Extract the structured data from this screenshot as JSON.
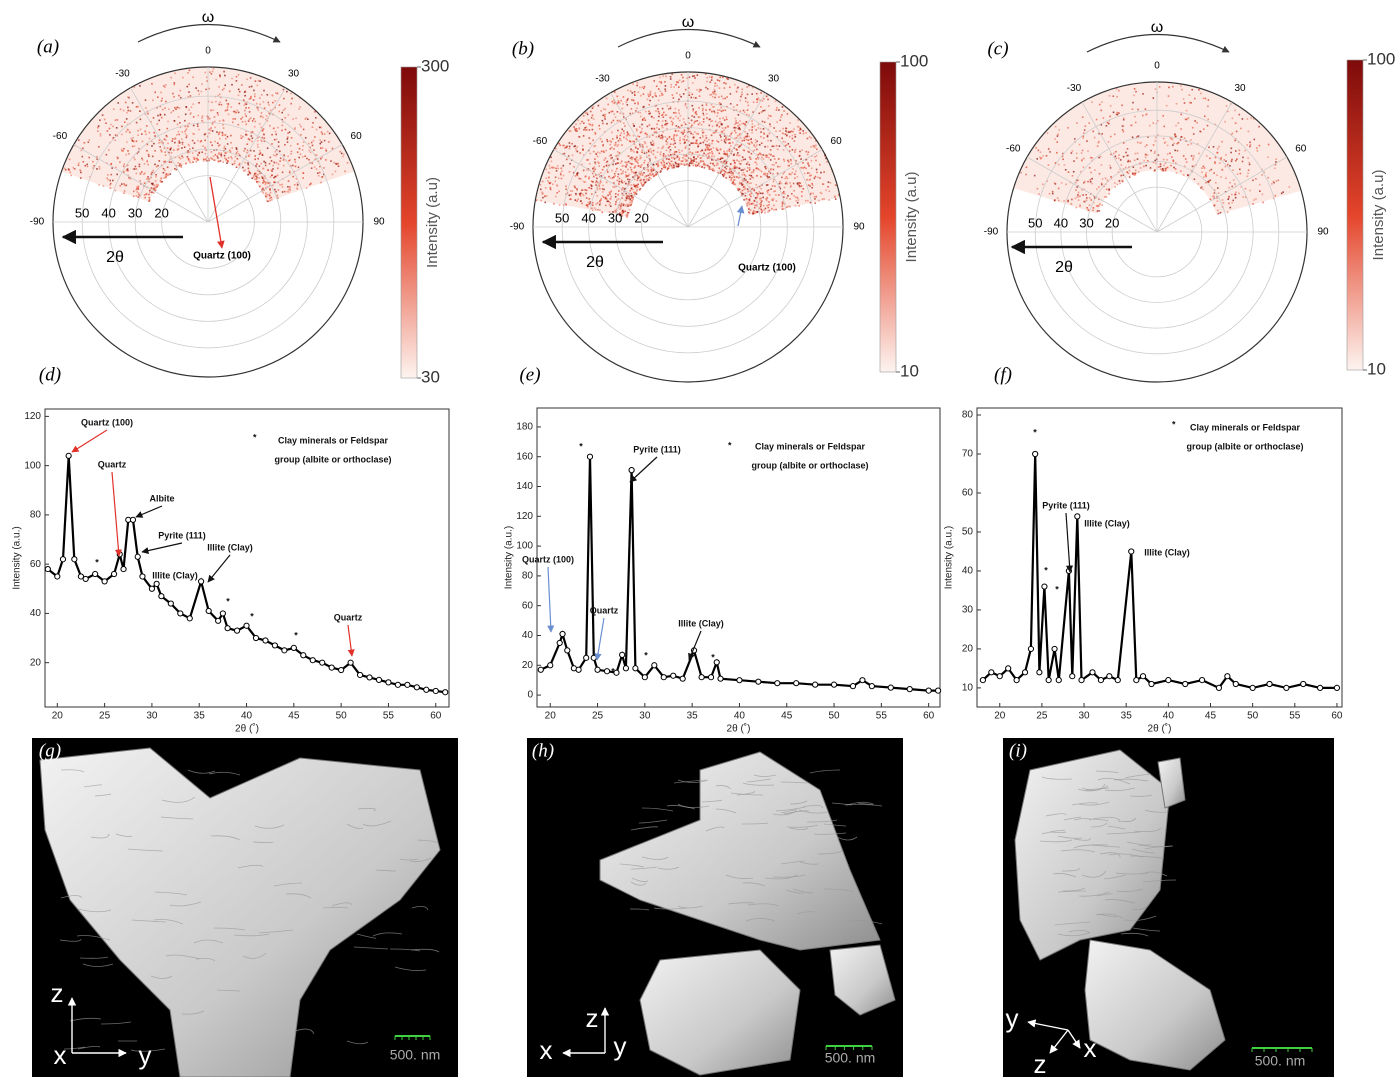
{
  "chart_data": [
    {
      "type": "polar",
      "label": "(a)",
      "omega": "ω",
      "angle_ticks": [
        -90,
        -60,
        -30,
        0,
        30,
        60,
        90
      ],
      "rlim": [
        2.5,
        61
      ],
      "rticks": [
        20,
        30,
        40,
        50
      ],
      "radial_label": "2θ",
      "annotation": "Quartz (100)",
      "colorbar": {
        "label": "Intensity (a.u)",
        "lim": [
          30,
          300
        ],
        "ticks": [
          30,
          300
        ],
        "log": true,
        "colors": [
          "#fdf4f0",
          "#e4452b",
          "#7d0a0a"
        ]
      }
    },
    {
      "type": "polar",
      "label": "(b)",
      "omega": "ω",
      "angle_ticks": [
        -90,
        -60,
        -30,
        0,
        30,
        60,
        90
      ],
      "rlim": [
        2.5,
        61
      ],
      "rticks": [
        20,
        30,
        40,
        50
      ],
      "radial_label": "2θ",
      "annotation": "Quartz (100)",
      "colorbar": {
        "label": "Intensity (a.u)",
        "lim": [
          10,
          100
        ],
        "ticks": [
          10,
          100
        ],
        "log": true,
        "colors": [
          "#fdf4f0",
          "#e4452b",
          "#7d0a0a"
        ]
      }
    },
    {
      "type": "polar",
      "label": "(c)",
      "omega": "ω",
      "angle_ticks": [
        -90,
        -60,
        -30,
        0,
        30,
        60,
        90
      ],
      "rlim": [
        2.5,
        61
      ],
      "rticks": [
        20,
        30,
        40,
        50
      ],
      "radial_label": "2θ",
      "colorbar": {
        "label": "Intensity (a.u)",
        "lim": [
          10,
          100
        ],
        "ticks": [
          10,
          100
        ],
        "log": true,
        "colors": [
          "#fdf4f0",
          "#e4452b",
          "#7d0a0a"
        ]
      }
    },
    {
      "type": "line",
      "label": "(d)",
      "xlabel": "2θ (˚)",
      "ylabel": "Intensity (a.u.)",
      "color": "#000000",
      "xlim": [
        18.7,
        61.4
      ],
      "xticks": [
        20,
        25,
        30,
        35,
        40,
        45,
        50,
        55,
        60
      ],
      "ylim": [
        2,
        123
      ],
      "yticks": [
        20,
        40,
        60,
        80,
        100,
        120
      ],
      "x": [
        19,
        20,
        20.6,
        21.2,
        21.8,
        22.5,
        23,
        24,
        25,
        26,
        26.6,
        27,
        27.5,
        28,
        28.5,
        29,
        30,
        30.5,
        31,
        32,
        33,
        34,
        35.2,
        36,
        37,
        37.5,
        38,
        39,
        40,
        41,
        42,
        43,
        44,
        45,
        46,
        47,
        48,
        49,
        50,
        51,
        52,
        53,
        54,
        55,
        56,
        57,
        58,
        59,
        60,
        61
      ],
      "values": [
        58,
        55,
        62,
        104,
        62,
        55,
        54,
        56,
        53,
        56,
        64,
        58,
        78,
        78,
        63,
        55,
        50,
        52,
        47,
        44,
        40,
        38,
        53,
        41,
        37,
        40,
        34,
        33,
        35,
        30,
        29,
        27,
        25,
        26,
        23,
        21,
        20,
        18,
        17,
        20,
        15,
        14,
        13,
        12,
        11,
        11,
        10,
        9,
        8.5,
        8
      ],
      "annotations": [
        "Quartz (100)",
        "Quartz",
        "Albite",
        "Pyrite (111)",
        "Illite (Clay)",
        "Illite (Clay)",
        "*",
        "*",
        "*",
        "*",
        "Quartz"
      ],
      "note": {
        "marker": "*",
        "lines": [
          "Clay minerals or Feldspar",
          "group (albite or orthoclase)"
        ]
      }
    },
    {
      "type": "line",
      "label": "(e)",
      "xlabel": "2θ (˚)",
      "ylabel": "Intensity (a.u.)",
      "color": "#000000",
      "xlim": [
        18.6,
        61.2
      ],
      "xticks": [
        20,
        25,
        30,
        35,
        40,
        45,
        50,
        55,
        60
      ],
      "ylim": [
        -8,
        192.7
      ],
      "yticks": [
        0,
        20,
        40,
        60,
        80,
        100,
        120,
        140,
        160,
        180
      ],
      "x": [
        19,
        20,
        21,
        21.3,
        21.8,
        22.5,
        23,
        23.8,
        24.2,
        24.6,
        25,
        26,
        27,
        27.6,
        28,
        28.6,
        29,
        30,
        31,
        32,
        33,
        34,
        35.2,
        36,
        37,
        37.6,
        38,
        40,
        42,
        44,
        46,
        48,
        50,
        52,
        53,
        54,
        56,
        58,
        60,
        61
      ],
      "values": [
        17,
        20,
        35,
        41,
        30,
        18,
        17,
        25,
        160,
        25,
        17,
        16,
        15,
        27,
        18,
        151,
        18,
        12,
        20,
        12,
        13,
        11,
        30,
        12,
        12,
        22,
        11,
        10,
        9,
        8,
        8,
        7,
        7,
        6,
        10,
        6,
        5,
        4,
        3,
        3
      ],
      "annotations": [
        "Quartz (100)",
        "*",
        "Pyrite (111)",
        "Quartz",
        "*",
        "*",
        "Illite (Clay)",
        "*"
      ],
      "note": {
        "marker": "*",
        "lines": [
          "Clay minerals or Feldspar",
          "group (albite or orthoclase)"
        ]
      }
    },
    {
      "type": "line",
      "label": "(f)",
      "xlabel": "2θ (˚)",
      "ylabel": "Intensity (a.u.)",
      "color": "#000000",
      "xlim": [
        17.3,
        60.6
      ],
      "xticks": [
        20,
        25,
        30,
        35,
        40,
        45,
        50,
        55,
        60
      ],
      "ylim": [
        5.1,
        81.8
      ],
      "yticks": [
        10,
        20,
        30,
        40,
        50,
        60,
        70,
        80
      ],
      "x": [
        18,
        19,
        20,
        21,
        22,
        23,
        23.7,
        24.2,
        24.7,
        25.3,
        25.8,
        26.5,
        27,
        28.2,
        28.6,
        29.2,
        29.7,
        31,
        32,
        33,
        34,
        35.6,
        36.2,
        37,
        38,
        40,
        42,
        44,
        46,
        47,
        48,
        50,
        52,
        54,
        56,
        58,
        60
      ],
      "values": [
        12,
        14,
        13,
        15,
        12,
        14,
        20,
        70,
        14,
        36,
        12,
        20,
        12,
        40,
        13,
        54,
        12,
        14,
        12,
        13,
        12,
        45,
        12,
        13,
        11,
        12,
        11,
        12,
        10,
        13,
        11,
        10,
        11,
        10,
        11,
        10,
        10
      ],
      "annotations": [
        "*",
        "*",
        "*",
        "Pyrite (111)",
        "Illite (Clay)",
        "Illite (Clay)"
      ],
      "note": {
        "marker": "*",
        "lines": [
          "Clay minerals or Feldspar",
          "group (albite or orthoclase)"
        ]
      }
    },
    {
      "type": "image",
      "label": "(g)",
      "axis_labels": [
        "z",
        "x",
        "y"
      ],
      "scale_bar": "500. nm"
    },
    {
      "type": "image",
      "label": "(h)",
      "axis_labels": [
        "z",
        "x",
        "y"
      ],
      "scale_bar": "500. nm"
    },
    {
      "type": "image",
      "label": "(i)",
      "axis_labels": [
        "y",
        "x",
        "z"
      ],
      "scale_bar": "500. nm"
    }
  ]
}
